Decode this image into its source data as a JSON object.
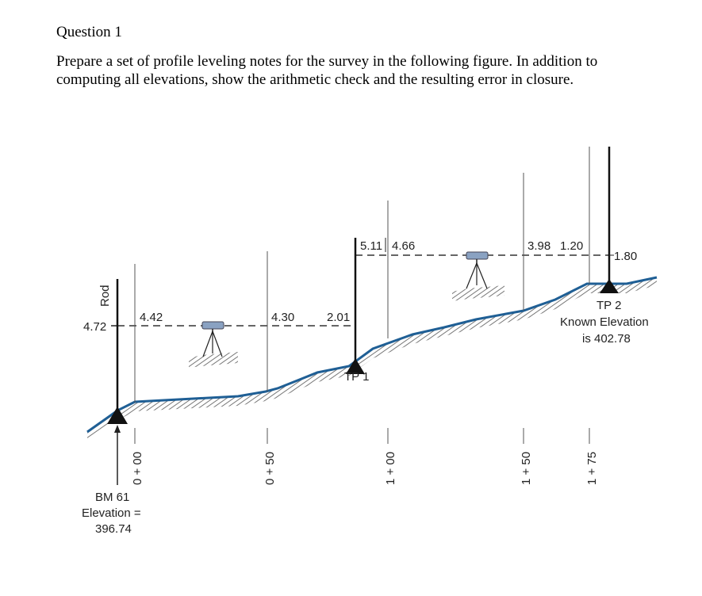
{
  "question": {
    "title": "Question 1",
    "body": "Prepare a set of profile leveling notes for the survey in the following figure. In addition to computing all elevations, show the arithmetic check and the resulting error in closure."
  },
  "figure": {
    "rod_axis_label": "Rod",
    "rod_readings": {
      "bs_bm61": "4.72",
      "sta_0_00": "4.42",
      "sta_0_50": "4.30",
      "fs_tp1": "2.01",
      "bs_tp1": "5.11",
      "sta_1_00": "4.66",
      "sta_1_50": "3.98",
      "sta_1_75": "1.20",
      "fs_tp2": "1.80"
    },
    "stations": [
      "0 + 00",
      "0 + 50",
      "1 + 00",
      "1 + 50",
      "1 + 75"
    ],
    "points": {
      "tp1_label": "TP 1",
      "tp2_label": "TP 2",
      "tp2_note_line1": "Known Elevation",
      "tp2_note_line2": "is 402.78",
      "bm_line1": "BM 61",
      "bm_line2": "Elevation =",
      "bm_line3": "396.74"
    },
    "colors": {
      "ground_line": "#1f5f95",
      "instrument": "#8aa2c2",
      "hatch": "#777777",
      "rod": "#222222"
    }
  }
}
